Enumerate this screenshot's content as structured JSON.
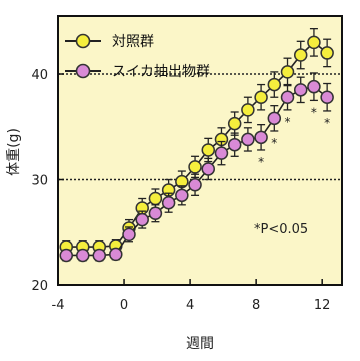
{
  "chart_data": {
    "type": "line",
    "xlabel": "週間",
    "ylabel": "体重(g)",
    "xlim": [
      -4,
      13.2
    ],
    "ylim": [
      20,
      45.5
    ],
    "xticks": [
      -4,
      0,
      4,
      8,
      12
    ],
    "yticks": [
      20,
      30,
      40
    ],
    "reference_lines_y": [
      30,
      40
    ],
    "grid": false,
    "legend_position": "top-left",
    "annotation": "*P<0.05",
    "colors": {
      "background": "#fbf6c8",
      "axis": "#111111",
      "errorbar": "#222222",
      "reference": "#222222"
    },
    "series": [
      {
        "name": "対照群",
        "marker_fill": "#f5ee3d",
        "marker_edge": "#333333",
        "x": [
          -3.5,
          -2.5,
          -1.5,
          -0.5,
          0.3,
          1.1,
          1.9,
          2.7,
          3.5,
          4.3,
          5.1,
          5.9,
          6.7,
          7.5,
          8.3,
          9.1,
          9.9,
          10.7,
          11.5,
          12.3
        ],
        "y": [
          23.6,
          23.6,
          23.6,
          23.7,
          25.4,
          27.3,
          28.2,
          29.0,
          29.8,
          31.2,
          32.8,
          33.8,
          35.3,
          36.6,
          37.8,
          39.0,
          40.2,
          41.8,
          43.0,
          42.0
        ],
        "err": [
          0.6,
          0.6,
          0.6,
          0.6,
          0.8,
          0.9,
          0.9,
          1.0,
          1.0,
          1.0,
          1.1,
          1.1,
          1.1,
          1.2,
          1.2,
          1.2,
          1.3,
          1.3,
          1.3,
          1.3
        ]
      },
      {
        "name": "スイカ抽出物群",
        "marker_fill": "#d98ad6",
        "marker_edge": "#333333",
        "x": [
          -3.5,
          -2.5,
          -1.5,
          -0.5,
          0.3,
          1.1,
          1.9,
          2.7,
          3.5,
          4.3,
          5.1,
          5.9,
          6.7,
          7.5,
          8.3,
          9.1,
          9.9,
          10.7,
          11.5,
          12.3
        ],
        "y": [
          22.8,
          22.8,
          22.8,
          22.9,
          24.8,
          26.2,
          26.8,
          27.8,
          28.5,
          29.5,
          31.0,
          32.5,
          33.3,
          33.8,
          34.0,
          35.8,
          37.8,
          38.5,
          38.8,
          37.8
        ],
        "err": [
          0.5,
          0.5,
          0.5,
          0.5,
          0.7,
          0.8,
          0.8,
          0.9,
          0.9,
          1.0,
          1.0,
          1.1,
          1.1,
          1.1,
          1.2,
          1.2,
          1.2,
          1.2,
          1.3,
          1.3
        ],
        "significance": [
          {
            "x": 8.3,
            "label": "*"
          },
          {
            "x": 9.1,
            "label": "*"
          },
          {
            "x": 9.9,
            "label": "*"
          },
          {
            "x": 11.5,
            "label": "*"
          },
          {
            "x": 12.3,
            "label": "*"
          }
        ]
      }
    ]
  }
}
